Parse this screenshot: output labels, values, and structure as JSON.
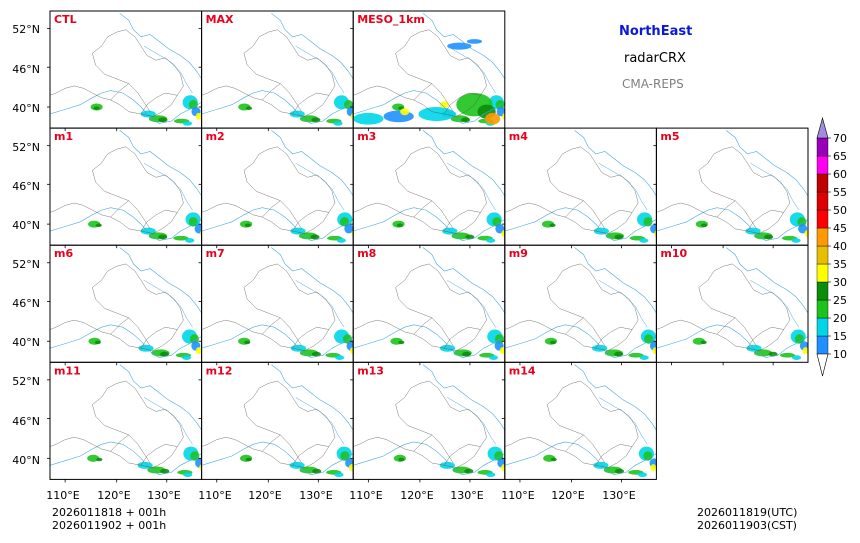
{
  "titles": {
    "region": "NorthEast",
    "product": "radarCRX",
    "system": "CMA-REPS"
  },
  "panels": [
    "CTL",
    "MAX",
    "MESO_1km",
    "m1",
    "m2",
    "m3",
    "m4",
    "m5",
    "m6",
    "m7",
    "m8",
    "m9",
    "m10",
    "m11",
    "m12",
    "m13",
    "m14"
  ],
  "axes": {
    "lat_labels": [
      "52°N",
      "46°N",
      "40°N"
    ],
    "lon_labels": [
      "110°E",
      "120°E",
      "130°E"
    ]
  },
  "colorbar": {
    "levels": [
      "10",
      "15",
      "20",
      "25",
      "30",
      "35",
      "40",
      "45",
      "50",
      "55",
      "60",
      "65",
      "70"
    ],
    "colors": [
      "#1e90ff",
      "#00d6e8",
      "#1cc31c",
      "#0b8d0b",
      "#ffff00",
      "#e6c000",
      "#ff9900",
      "#ff0000",
      "#dd0000",
      "#c00000",
      "#ff00f0",
      "#9a00b8",
      "#a08ce0"
    ],
    "extend_low_color": "#ffffff",
    "extend_high_color": "#a08ce0"
  },
  "footer": {
    "init_line1": "2026011818  +  001h",
    "init_line2": "2026011902  +  001h",
    "valid_utc": "2026011819(UTC)",
    "valid_cst": "2026011903(CST)"
  }
}
